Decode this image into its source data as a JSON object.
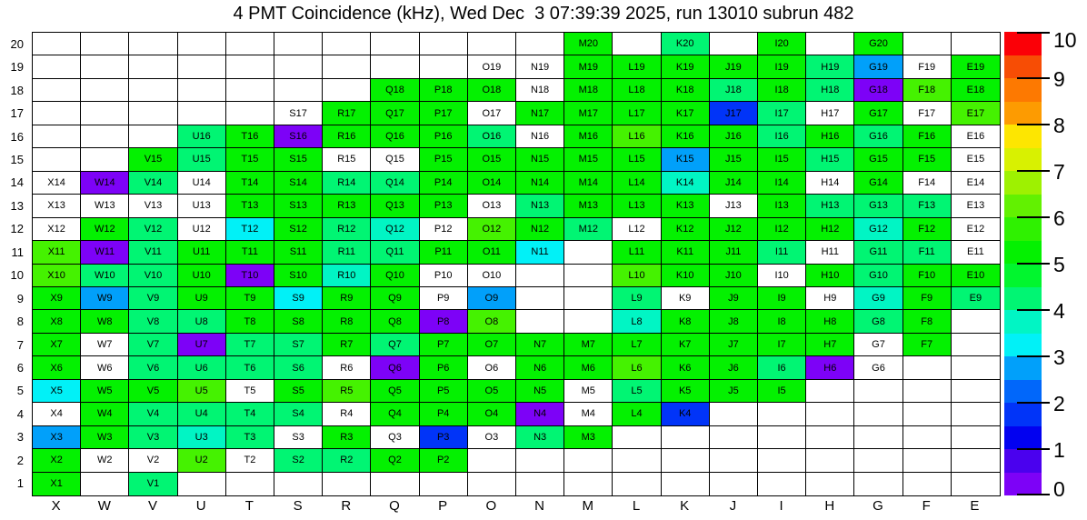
{
  "chart_data": {
    "type": "heatmap",
    "title": "4 PMT Coincidence (kHz), Wed Dec  3 07:39:39 2025, run 13010 subrun 482",
    "x_categories": [
      "X",
      "W",
      "V",
      "U",
      "T",
      "S",
      "R",
      "Q",
      "P",
      "O",
      "N",
      "M",
      "L",
      "K",
      "J",
      "I",
      "H",
      "G",
      "F",
      "E"
    ],
    "y_categories": [
      "20",
      "19",
      "18",
      "17",
      "16",
      "15",
      "14",
      "13",
      "12",
      "11",
      "10",
      "9",
      "8",
      "7",
      "6",
      "5",
      "4",
      "3",
      "2",
      "1"
    ],
    "grid": "on",
    "legend_position": "right",
    "colorbar": {
      "min": 0,
      "max": 10,
      "tick_labels": [
        "0",
        "1",
        "2",
        "3",
        "4",
        "5",
        "6",
        "7",
        "8",
        "9",
        "10"
      ],
      "palette_bottom_to_top": [
        "#7d02f7",
        "#4a01ee",
        "#0201f0",
        "#0134f8",
        "#0167fa",
        "#01a0fa",
        "#01f1f7",
        "#01f5c4",
        "#01f573",
        "#01f62e",
        "#04f101",
        "#2ff101",
        "#62f101",
        "#9ef101",
        "#d8f101",
        "#fde601",
        "#fd9b01",
        "#fd7901",
        "#f74d05",
        "#fb0007"
      ]
    },
    "bins": {
      "g": "#04f101",
      "g2": "#45f201",
      "sg": "#01f573",
      "tq": "#01f5c4",
      "cy": "#01f1f7",
      "sb": "#01a0fa",
      "bl": "#0134f8",
      "vi": "#7d02f7",
      "w": "#ffffff"
    },
    "bin_value_estimates_khz": {
      "g": 5.2,
      "g2": 6.0,
      "sg": 4.2,
      "tq": 3.8,
      "cy": 3.2,
      "sb": 2.8,
      "bl": 1.8,
      "vi": 0.3,
      "w": 0
    },
    "cells": [
      [
        "",
        "",
        "",
        "",
        "",
        "",
        "",
        "",
        "",
        "",
        "",
        "M20:g",
        "",
        "K20:sg",
        "",
        "I20:g",
        "",
        "G20:g",
        "",
        ""
      ],
      [
        "",
        "",
        "",
        "",
        "",
        "",
        "",
        "",
        "",
        "O19:w",
        "N19:w",
        "M19:g",
        "L19:g",
        "K19:g",
        "J19:g",
        "I19:g",
        "H19:sg",
        "G19:sb",
        "F19:w",
        "E19:g"
      ],
      [
        "",
        "",
        "",
        "",
        "",
        "",
        "",
        "Q18:g",
        "P18:g",
        "O18:g",
        "N18:w",
        "M18:g",
        "L18:g",
        "K18:g",
        "J18:sg",
        "I18:g",
        "H18:sg",
        "G18:vi",
        "F18:g2",
        "E18:g"
      ],
      [
        "",
        "",
        "",
        "",
        "",
        "S17:w",
        "R17:g",
        "Q17:g",
        "P17:g",
        "O17:w",
        "N17:g",
        "M17:g",
        "L17:g",
        "K17:g",
        "J17:bl",
        "I17:sg",
        "H17:w",
        "G17:g",
        "F17:w",
        "E17:g2"
      ],
      [
        "",
        "",
        "",
        "U16:sg",
        "T16:g",
        "S16:vi",
        "R16:g",
        "Q16:g",
        "P16:g",
        "O16:sg",
        "N16:w",
        "M16:g",
        "L16:g2",
        "K16:g",
        "J16:g",
        "I16:sg",
        "H16:g",
        "G16:sg",
        "F16:g",
        "E16:w"
      ],
      [
        "",
        "",
        "V15:g",
        "U15:sg",
        "T15:g",
        "S15:g",
        "R15:w",
        "Q15:w",
        "P15:g",
        "O15:g",
        "N15:g",
        "M15:g",
        "L15:g",
        "K15:sb",
        "J15:g",
        "I15:g",
        "H15:sg",
        "G15:g",
        "F15:g",
        "E15:w"
      ],
      [
        "X14:w",
        "W14:vi",
        "V14:sg",
        "U14:w",
        "T14:g",
        "S14:g",
        "R14:sg",
        "Q14:sg",
        "P14:g",
        "O14:g",
        "N14:g",
        "M14:g",
        "L14:g",
        "K14:tq",
        "J14:g",
        "I14:g",
        "H14:w",
        "G14:g",
        "F14:w",
        "E14:w"
      ],
      [
        "X13:w",
        "W13:w",
        "V13:w",
        "U13:w",
        "T13:g",
        "S13:g",
        "R13:g",
        "Q13:g",
        "P13:g",
        "O13:w",
        "N13:sg",
        "M13:g",
        "L13:g",
        "K13:g",
        "J13:w",
        "I13:g",
        "H13:sg",
        "G13:sg",
        "F13:sg",
        "E13:w"
      ],
      [
        "X12:w",
        "W12:g",
        "V12:sg",
        "U12:w",
        "T12:cy",
        "S12:g",
        "R12:sg",
        "Q12:tq",
        "P12:w",
        "O12:g2",
        "N12:g",
        "M12:sg",
        "L12:w",
        "K12:g",
        "J12:g",
        "I12:g",
        "H12:g",
        "G12:tq",
        "F12:g",
        "E12:w"
      ],
      [
        "X11:g2",
        "W11:vi",
        "V11:sg",
        "U11:g",
        "T11:g",
        "S11:g",
        "R11:sg",
        "Q11:sg",
        "P11:g",
        "O11:g",
        "N11:cy",
        "",
        "L11:g",
        "K11:g",
        "J11:g",
        "I11:sg",
        "H11:w",
        "G11:sg",
        "F11:sg",
        "E11:w"
      ],
      [
        "X10:g2",
        "W10:sg",
        "V10:sg",
        "U10:g",
        "T10:vi",
        "S10:g",
        "R10:tq",
        "Q10:g",
        "P10:w",
        "O10:w",
        "",
        "",
        "L10:g2",
        "K10:g",
        "J10:g",
        "I10:w",
        "H10:g",
        "G10:sg",
        "F10:g",
        "E10:g"
      ],
      [
        "X9:g",
        "W9:sb",
        "V9:sg",
        "U9:g",
        "T9:g",
        "S9:cy",
        "R9:g",
        "Q9:g",
        "P9:w",
        "O9:sb",
        "",
        "",
        "L9:sg",
        "K9:w",
        "J9:g",
        "I9:g",
        "H9:w",
        "G9:tq",
        "F9:g",
        "E9:sg"
      ],
      [
        "X8:g",
        "W8:g",
        "V8:sg",
        "U8:sg",
        "T8:g",
        "S8:g",
        "R8:g",
        "Q8:g",
        "P8:vi",
        "O8:g2",
        "",
        "",
        "L8:tq",
        "K8:g",
        "J8:g",
        "I8:g",
        "H8:g",
        "G8:sg",
        "F8:g",
        ""
      ],
      [
        "X7:g",
        "W7:w",
        "V7:sg",
        "U7:vi",
        "T7:sg",
        "S7:sg",
        "R7:g",
        "Q7:sg",
        "P7:g",
        "O7:g",
        "N7:g",
        "M7:g",
        "L7:g",
        "K7:g",
        "J7:g",
        "I7:g",
        "H7:g",
        "G7:w",
        "F7:g",
        ""
      ],
      [
        "X6:g",
        "W6:w",
        "V6:sg",
        "U6:sg",
        "T6:sg",
        "S6:sg",
        "R6:w",
        "Q6:vi",
        "P6:g",
        "O6:w",
        "N6:g",
        "M6:g",
        "L6:g2",
        "K6:g",
        "J6:g",
        "I6:sg",
        "H6:vi",
        "G6:w",
        "",
        ""
      ],
      [
        "X5:cy",
        "W5:g",
        "V5:g",
        "U5:g2",
        "T5:w",
        "S5:g",
        "R5:g2",
        "Q5:g",
        "P5:g",
        "O5:g",
        "N5:g",
        "M5:w",
        "L5:sg",
        "K5:g",
        "J5:g",
        "I5:g",
        "",
        "",
        "",
        ""
      ],
      [
        "X4:w",
        "W4:g",
        "V4:sg",
        "U4:sg",
        "T4:sg",
        "S4:sg",
        "R4:w",
        "Q4:g",
        "P4:g",
        "O4:g",
        "N4:vi",
        "M4:w",
        "L4:g",
        "K4:bl",
        "",
        "",
        "",
        "",
        "",
        ""
      ],
      [
        "X3:sb",
        "W3:g",
        "V3:sg",
        "U3:tq",
        "T3:sg",
        "S3:w",
        "R3:g",
        "Q3:w",
        "P3:bl",
        "O3:w",
        "N3:sg",
        "M3:g",
        "",
        "",
        "",
        "",
        "",
        "",
        "",
        ""
      ],
      [
        "X2:g",
        "W2:w",
        "V2:w",
        "U2:g2",
        "T2:w",
        "S2:sg",
        "R2:sg",
        "Q2:g",
        "P2:g",
        "",
        "",
        "",
        "",
        "",
        "",
        "",
        "",
        "",
        "",
        ""
      ],
      [
        "X1:g",
        "",
        "V1:sg",
        "",
        "",
        "",
        "",
        "",
        "",
        "",
        "",
        "",
        "",
        "",
        "",
        "",
        "",
        "",
        "",
        ""
      ]
    ]
  }
}
